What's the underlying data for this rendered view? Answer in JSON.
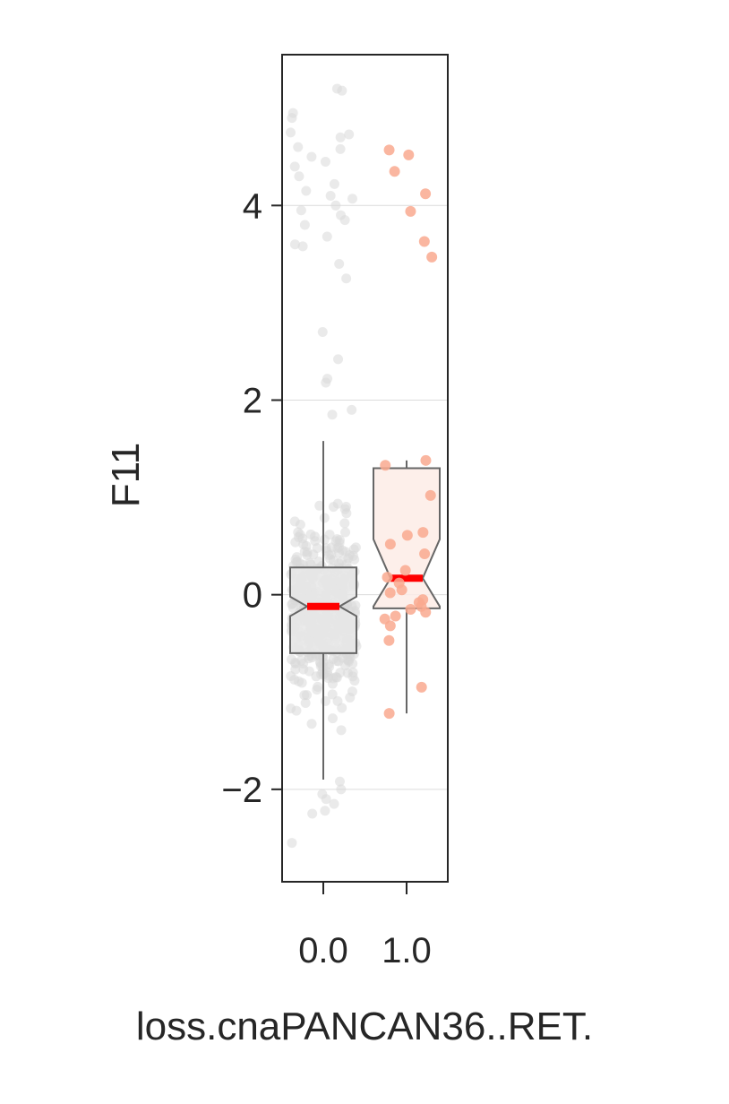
{
  "chart_data": {
    "type": "box",
    "xlabel": "loss.cnaPANCAN36..RET.",
    "ylabel": "F11",
    "ylim": [
      -2.95,
      5.55
    ],
    "yticks": [
      -2,
      0,
      2,
      4
    ],
    "ytick_labels": [
      "−2",
      "0",
      "2",
      "4"
    ],
    "grid": "horizontal",
    "notched": true,
    "groups": [
      {
        "category": "0.0",
        "box_fill": "#e8e8e8",
        "point_color": "#d9d9d9",
        "whisker_low": -1.9,
        "q1": -0.6,
        "median": -0.12,
        "q3": 0.28,
        "whisker_high": 1.58,
        "notch_low": -0.22,
        "notch_high": -0.02,
        "outliers": [
          5.2,
          5.18,
          4.95,
          4.9,
          4.75,
          4.73,
          4.7,
          4.6,
          4.58,
          4.5,
          4.45,
          4.4,
          4.3,
          4.22,
          4.15,
          4.1,
          4.07,
          4.0,
          3.95,
          3.9,
          3.85,
          3.8,
          3.68,
          3.6,
          3.58,
          3.4,
          3.25,
          2.7,
          2.42,
          2.22,
          2.18,
          1.9,
          1.85,
          -1.92,
          -2.0,
          -2.05,
          -2.1,
          -2.15,
          -2.22,
          -2.25,
          -2.55
        ]
      },
      {
        "category": "1.0",
        "box_fill": "#fdece6",
        "point_color": "#f9a98f",
        "whisker_low": -1.22,
        "q1": -0.14,
        "median": 0.17,
        "q3": 1.3,
        "whisker_high": 1.38,
        "notch_low": -0.12,
        "notch_high": 0.57,
        "outliers": [],
        "points": [
          4.57,
          4.52,
          4.35,
          4.12,
          3.94,
          3.63,
          3.47,
          1.38,
          1.33,
          1.02,
          0.64,
          0.61,
          0.52,
          0.42,
          0.25,
          0.18,
          0.12,
          0.05,
          0.02,
          -0.05,
          -0.08,
          -0.12,
          -0.15,
          -0.18,
          -0.22,
          -0.25,
          -0.32,
          -0.47,
          -0.95,
          -1.22
        ]
      }
    ],
    "median_color": "#ff0000"
  }
}
